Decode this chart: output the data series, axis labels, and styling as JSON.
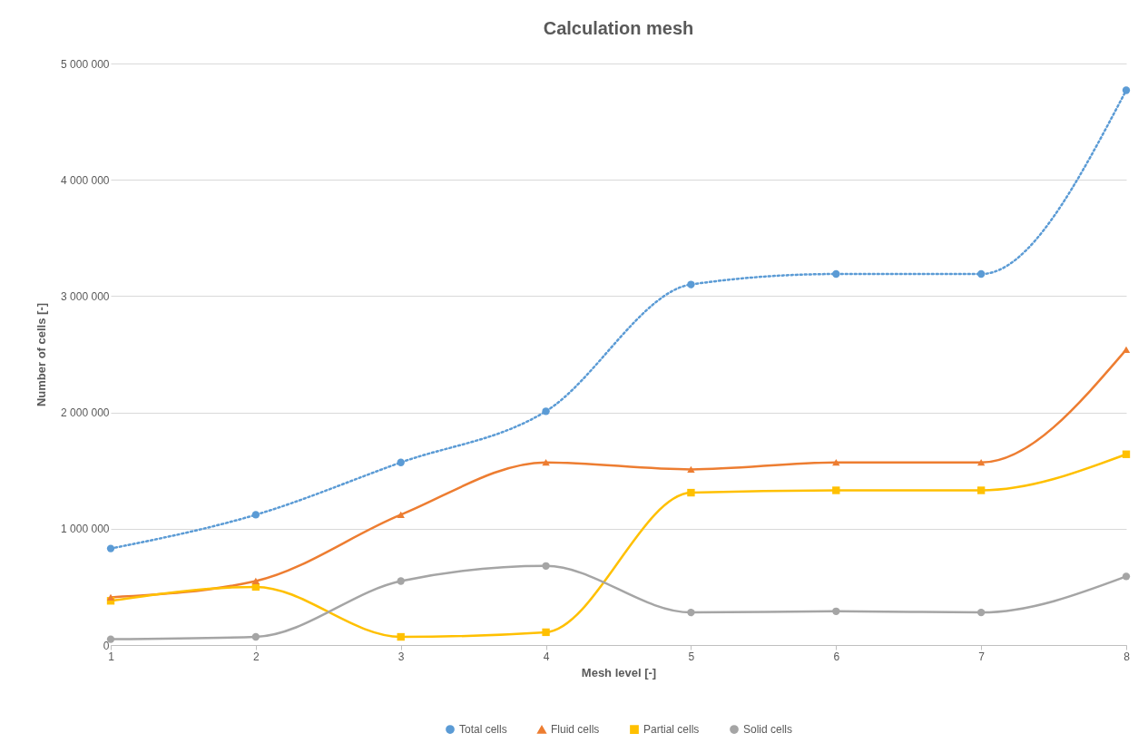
{
  "chart_data": {
    "type": "line",
    "title": "Calculation mesh",
    "xlabel": "Mesh level [-]",
    "ylabel": "Number of cells [-]",
    "categories": [
      "1",
      "2",
      "3",
      "4",
      "5",
      "6",
      "7",
      "8"
    ],
    "series": [
      {
        "name": "Total cells",
        "color": "#5b9bd5",
        "marker": "circle",
        "line_style": "dotted",
        "values": [
          830000,
          1120000,
          1570000,
          2010000,
          3100000,
          3190000,
          3190000,
          4770000
        ]
      },
      {
        "name": "Fluid cells",
        "color": "#ed7d31",
        "marker": "triangle",
        "line_style": "solid",
        "values": [
          410000,
          550000,
          1120000,
          1570000,
          1510000,
          1570000,
          1570000,
          2540000
        ]
      },
      {
        "name": "Partial cells",
        "color": "#ffc000",
        "marker": "square",
        "line_style": "solid",
        "values": [
          380000,
          500000,
          70000,
          110000,
          1310000,
          1330000,
          1330000,
          1640000
        ]
      },
      {
        "name": "Solid cells",
        "color": "#a5a5a5",
        "marker": "circle",
        "line_style": "solid",
        "values": [
          50000,
          70000,
          550000,
          680000,
          280000,
          290000,
          280000,
          590000
        ]
      }
    ],
    "ylim": [
      0,
      5000000
    ],
    "yticks": [
      {
        "value": 0,
        "label": "0"
      },
      {
        "value": 1000000,
        "label": "1 000 000"
      },
      {
        "value": 2000000,
        "label": "2 000 000"
      },
      {
        "value": 3000000,
        "label": "3 000 000"
      },
      {
        "value": 4000000,
        "label": "4 000 000"
      },
      {
        "value": 5000000,
        "label": "5 000 000"
      }
    ],
    "grid": "y",
    "legend": "bottom"
  }
}
